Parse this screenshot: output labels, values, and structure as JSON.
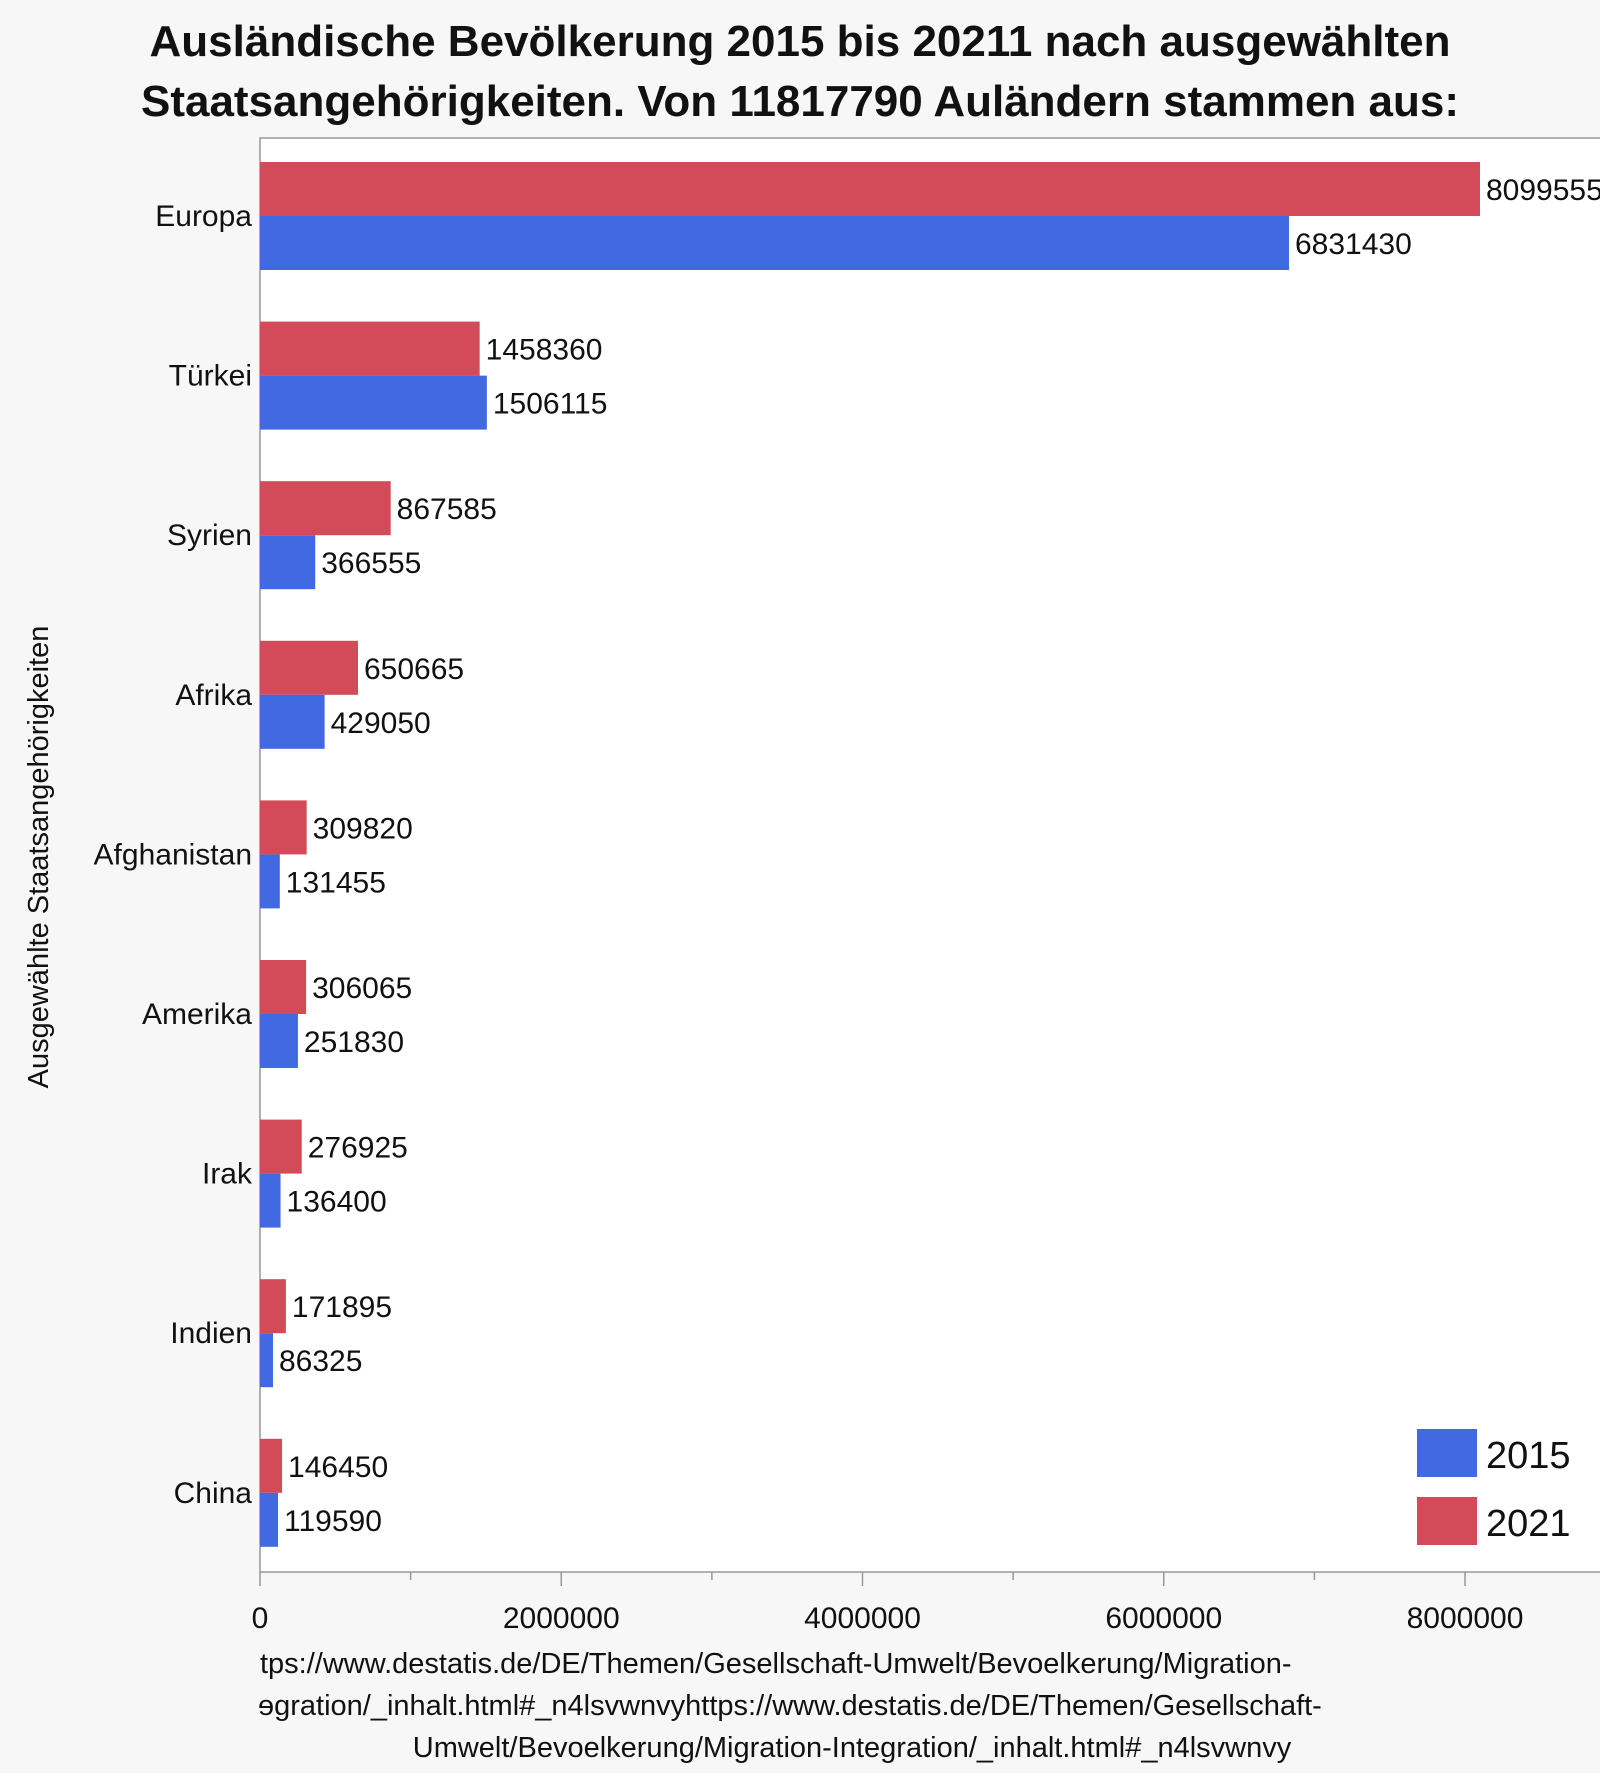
{
  "chart_data": {
    "type": "bar",
    "orientation": "horizontal",
    "title": [
      "Ausländische Bevölkerung 2015 bis 20211 nach ausgewählten",
      "Staatsangehörigkeiten.  Von 11817790 Auländern stammen  aus:"
    ],
    "ylabel": "Ausgewählte Staatsangehörigkeiten",
    "xlabel": [
      "tps://www.destatis.de/DE/Themen/Gesellschaft-Umwelt/Bevoelkerung/Migration-",
      "ɘgration/_inhalt.html#_n4lsvwnvyhttps://www.destatis.de/DE/Themen/Gesellschaft-",
      "Umwelt/Bevoelkerung/Migration-Integration/_inhalt.html#_n4lsvwnvy"
    ],
    "categories": [
      "Europa",
      "Türkei",
      "Syrien",
      "Afrika",
      "Afghanistan",
      "Amerika",
      "Irak",
      "Indien",
      "China"
    ],
    "series": [
      {
        "name": "2021",
        "color": "#d34a59",
        "values": [
          8099555,
          1458360,
          867585,
          650665,
          309820,
          306065,
          276925,
          171895,
          146450
        ]
      },
      {
        "name": "2015",
        "color": "#4169e1",
        "values": [
          6831430,
          1506115,
          366555,
          429050,
          131455,
          251830,
          136400,
          86325,
          119590
        ]
      }
    ],
    "xlim": [
      0,
      10000000
    ],
    "xticks": [
      "0",
      "2000000",
      "4000000",
      "6000000",
      "8000000"
    ],
    "legend": {
      "placement": "bottom-right",
      "items": [
        "2015",
        "2021"
      ]
    },
    "grid": false
  }
}
